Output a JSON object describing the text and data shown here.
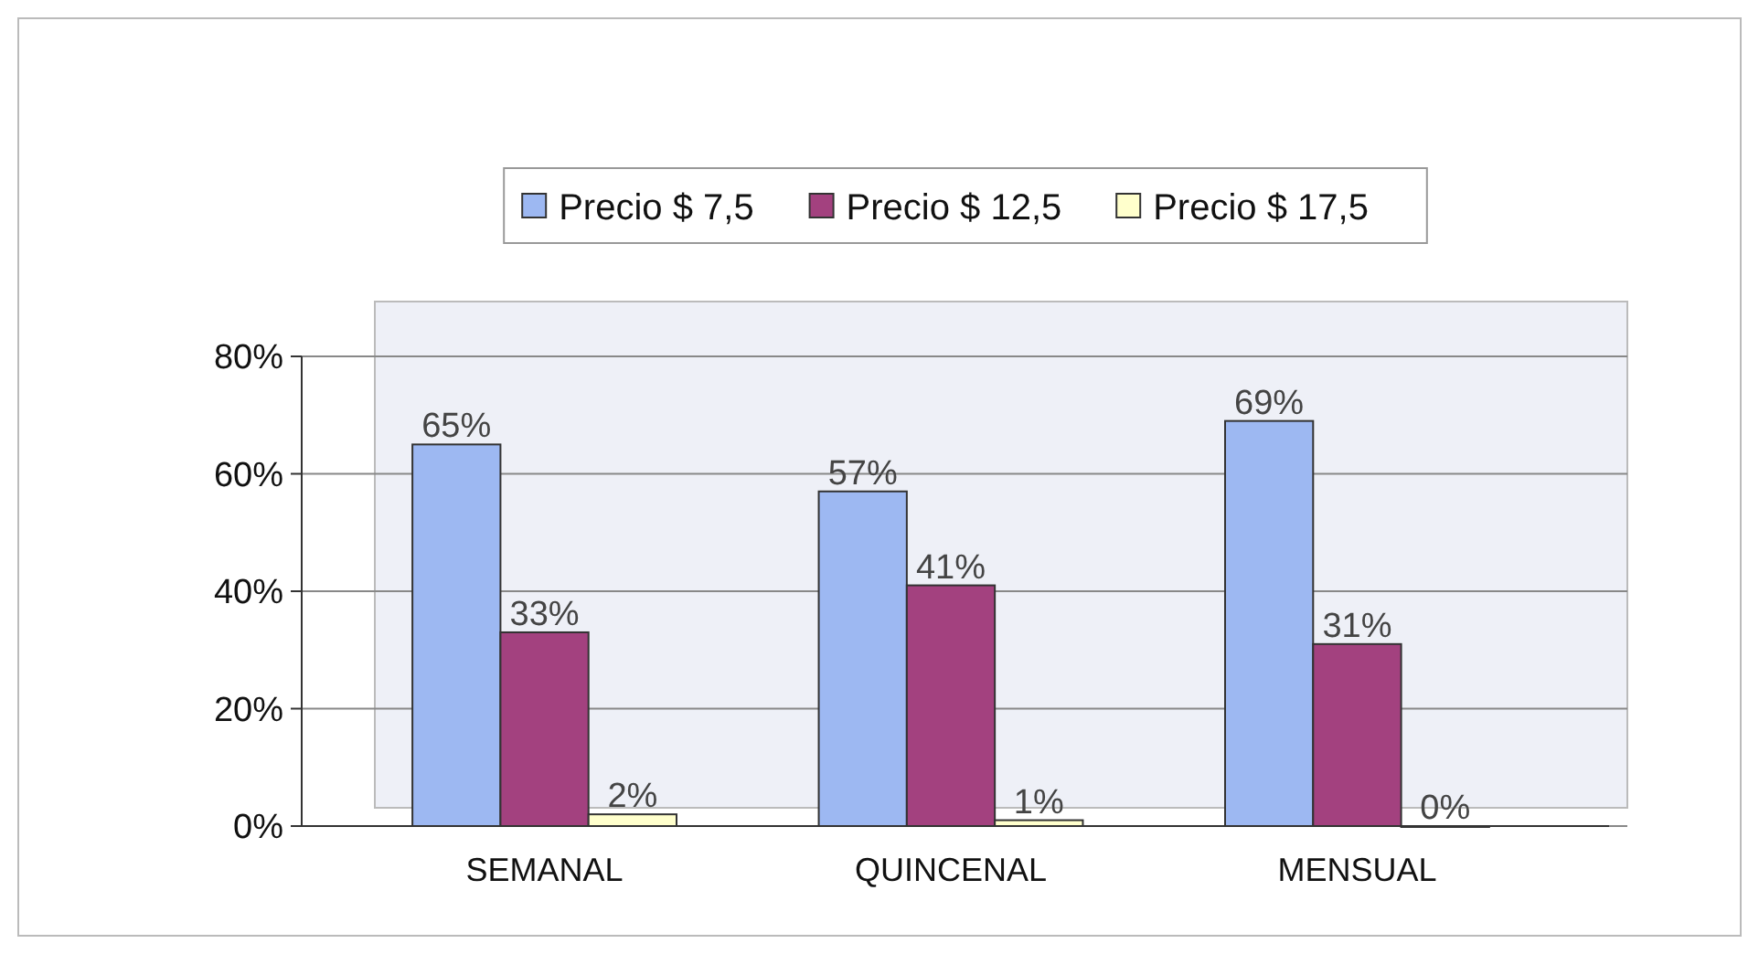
{
  "chart_data": {
    "type": "bar",
    "categories": [
      "SEMANAL",
      "QUINCENAL",
      "MENSUAL"
    ],
    "series": [
      {
        "name": "Precio $ 7,5",
        "color": "#9db8f2",
        "values": [
          65,
          57,
          69
        ],
        "value_labels": [
          "65%",
          "57%",
          "69%"
        ]
      },
      {
        "name": "Precio $ 12,5",
        "color": "#a3417f",
        "values": [
          33,
          41,
          31
        ],
        "value_labels": [
          "33%",
          "41%",
          "31%"
        ]
      },
      {
        "name": "Precio $ 17,5",
        "color": "#ffffcc",
        "values": [
          2,
          1,
          0
        ],
        "value_labels": [
          "2%",
          "1%",
          "0%"
        ]
      }
    ],
    "ylim": [
      0,
      80
    ],
    "yticks": [
      {
        "value": 0,
        "label": "0%"
      },
      {
        "value": 20,
        "label": "20%"
      },
      {
        "value": 40,
        "label": "40%"
      },
      {
        "value": 60,
        "label": "60%"
      },
      {
        "value": 80,
        "label": "80%"
      }
    ],
    "grid": "y",
    "legend": "top"
  }
}
